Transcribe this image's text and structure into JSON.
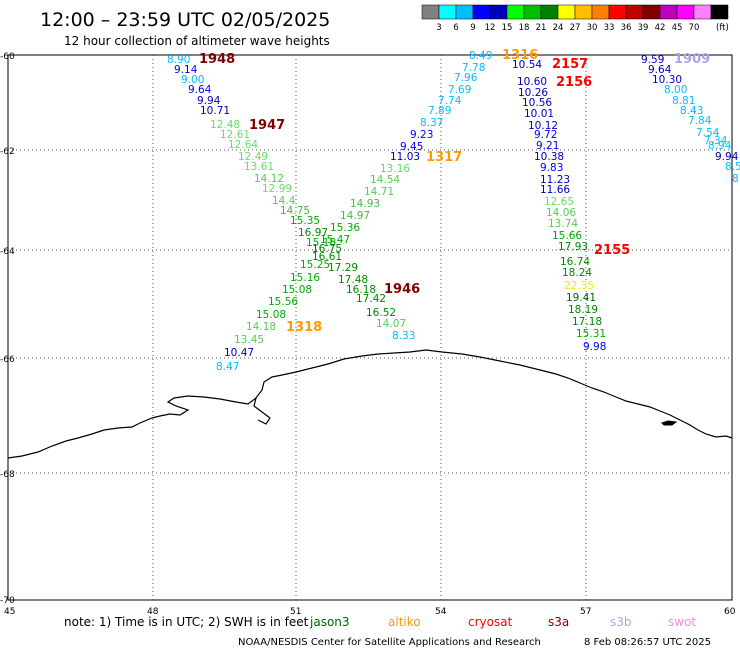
{
  "header": {
    "title": "12:00 – 23:59 UTC 02/05/2025",
    "subtitle": "12 hour collection of altimeter wave heights"
  },
  "colorbar": {
    "colors": [
      "#808080",
      "#00ffff",
      "#00bfff",
      "#0000ff",
      "#0000bf",
      "#00ff00",
      "#00bf00",
      "#008000",
      "#ffff00",
      "#ffbf00",
      "#ff8000",
      "#ff0000",
      "#bf0000",
      "#800000",
      "#bf00bf",
      "#ff00ff",
      "#ff80ff",
      "#000000"
    ],
    "labels": [
      "3",
      "6",
      "9",
      "12",
      "15",
      "18",
      "21",
      "24",
      "27",
      "30",
      "33",
      "36",
      "39",
      "42",
      "45",
      "70"
    ],
    "unit": "(ft)"
  },
  "axes": {
    "lat_ticks": [
      "-60",
      "-62",
      "-64",
      "-66",
      "-68",
      "-70"
    ],
    "lon_ticks": [
      "45",
      "48",
      "51",
      "54",
      "57",
      "60"
    ]
  },
  "wave_labels": [
    {
      "v": "8.90",
      "c": "#00bfff"
    },
    {
      "v": "9.14",
      "c": "#0000ff"
    },
    {
      "v": "9.00",
      "c": "#00bfff"
    },
    {
      "v": "9.64",
      "c": "#0000ff"
    },
    {
      "v": "9.94",
      "c": "#0000bf"
    },
    {
      "v": "10.71",
      "c": "#0000bf"
    },
    {
      "v": "12.48",
      "c": "#66dd66"
    },
    {
      "v": "12.61",
      "c": "#66dd66"
    },
    {
      "v": "12.64",
      "c": "#66dd66"
    },
    {
      "v": "12.49",
      "c": "#66dd66"
    },
    {
      "v": "13.61",
      "c": "#66dd66"
    },
    {
      "v": "14.12",
      "c": "#55cc55"
    },
    {
      "v": "12.99",
      "c": "#66dd66"
    },
    {
      "v": "14.4",
      "c": "#55cc55"
    },
    {
      "v": "14.75",
      "c": "#44bb44"
    },
    {
      "v": "15.35",
      "c": "#00aa00"
    },
    {
      "v": "16.97",
      "c": "#008800"
    },
    {
      "v": "15.18",
      "c": "#00aa00"
    },
    {
      "v": "16.75",
      "c": "#008800"
    },
    {
      "v": "16.61",
      "c": "#008800"
    },
    {
      "v": "15.25",
      "c": "#00aa00"
    },
    {
      "v": "15.16",
      "c": "#00aa00"
    },
    {
      "v": "15.08",
      "c": "#00aa00"
    },
    {
      "v": "15.56",
      "c": "#00aa00"
    },
    {
      "v": "15.08",
      "c": "#00aa00"
    },
    {
      "v": "14.18",
      "c": "#55cc55"
    },
    {
      "v": "13.45",
      "c": "#55cc55"
    },
    {
      "v": "10.47",
      "c": "#0000bf"
    },
    {
      "v": "8.47",
      "c": "#00bfff"
    },
    {
      "v": "8.49",
      "c": "#00bfff"
    },
    {
      "v": "7.78",
      "c": "#00bfff"
    },
    {
      "v": "7.96",
      "c": "#00bfff"
    },
    {
      "v": "7.69",
      "c": "#00bfff"
    },
    {
      "v": "7.74",
      "c": "#00bfff"
    },
    {
      "v": "7.89",
      "c": "#00bfff"
    },
    {
      "v": "8.37",
      "c": "#00bfff"
    },
    {
      "v": "9.23",
      "c": "#0000ff"
    },
    {
      "v": "9.45",
      "c": "#0000ff"
    },
    {
      "v": "11.03",
      "c": "#0000bf"
    },
    {
      "v": "13.16",
      "c": "#66dd66"
    },
    {
      "v": "14.54",
      "c": "#55cc55"
    },
    {
      "v": "14.71",
      "c": "#55cc55"
    },
    {
      "v": "14.93",
      "c": "#44bb44"
    },
    {
      "v": "14.97",
      "c": "#44bb44"
    },
    {
      "v": "15.36",
      "c": "#00aa00"
    },
    {
      "v": "15.47",
      "c": "#00aa00"
    },
    {
      "v": "17.29",
      "c": "#008800"
    },
    {
      "v": "17.48",
      "c": "#008800"
    },
    {
      "v": "16.18",
      "c": "#008800"
    },
    {
      "v": "17.42",
      "c": "#008800"
    },
    {
      "v": "16.52",
      "c": "#008800"
    },
    {
      "v": "14.07",
      "c": "#55cc55"
    },
    {
      "v": "8.33",
      "c": "#00bfff"
    },
    {
      "v": "10.54",
      "c": "#0000bf"
    },
    {
      "v": "10.60",
      "c": "#0000bf"
    },
    {
      "v": "10.26",
      "c": "#0000bf"
    },
    {
      "v": "10.56",
      "c": "#0000bf"
    },
    {
      "v": "10.01",
      "c": "#0000bf"
    },
    {
      "v": "10.12",
      "c": "#0000bf"
    },
    {
      "v": "9.72",
      "c": "#0000ff"
    },
    {
      "v": "9.21",
      "c": "#0000ff"
    },
    {
      "v": "10.38",
      "c": "#0000bf"
    },
    {
      "v": "9.83",
      "c": "#0000ff"
    },
    {
      "v": "11.23",
      "c": "#0000bf"
    },
    {
      "v": "11.66",
      "c": "#0000bf"
    },
    {
      "v": "12.65",
      "c": "#66dd66"
    },
    {
      "v": "14.06",
      "c": "#55cc55"
    },
    {
      "v": "13.74",
      "c": "#55cc55"
    },
    {
      "v": "15.66",
      "c": "#00aa00"
    },
    {
      "v": "17.93",
      "c": "#008800"
    },
    {
      "v": "16.74",
      "c": "#008800"
    },
    {
      "v": "18.24",
      "c": "#008800"
    },
    {
      "v": "22.35",
      "c": "#eeee00"
    },
    {
      "v": "19.41",
      "c": "#006600"
    },
    {
      "v": "18.19",
      "c": "#008800"
    },
    {
      "v": "17.18",
      "c": "#008800"
    },
    {
      "v": "15.31",
      "c": "#00aa00"
    },
    {
      "v": "9.98",
      "c": "#0000ff"
    },
    {
      "v": "9.59",
      "c": "#0000bf"
    },
    {
      "v": "9.64",
      "c": "#0000bf"
    },
    {
      "v": "10.30",
      "c": "#0000bf"
    },
    {
      "v": "8.00",
      "c": "#00bfff"
    },
    {
      "v": "8.81",
      "c": "#00bfff"
    },
    {
      "v": "8.43",
      "c": "#00bfff"
    },
    {
      "v": "7.84",
      "c": "#00bfff"
    },
    {
      "v": "7.54",
      "c": "#00bfff"
    },
    {
      "v": "7.34",
      "c": "#00bfff"
    },
    {
      "v": "8.94",
      "c": "#00bfff"
    },
    {
      "v": "9.94",
      "c": "#0000bf"
    },
    {
      "v": "8.5",
      "c": "#00bfff"
    },
    {
      "v": "8",
      "c": "#00bfff"
    }
  ],
  "pass_labels": [
    {
      "t": "1948",
      "c": "#800000"
    },
    {
      "t": "1947",
      "c": "#800000"
    },
    {
      "t": "1946",
      "c": "#800000"
    },
    {
      "t": "1318",
      "c": "#ff9900"
    },
    {
      "t": "1316",
      "c": "#ff9900"
    },
    {
      "t": "1317",
      "c": "#ff9900"
    },
    {
      "t": "2157",
      "c": "#ff0000"
    },
    {
      "t": "2156",
      "c": "#ff0000"
    },
    {
      "t": "2155",
      "c": "#ff0000"
    },
    {
      "t": "1909",
      "c": "#b0a0e8"
    }
  ],
  "legend": {
    "note": "note:  1) Time is in UTC;  2) SWH is in feet",
    "satellites": [
      {
        "name": "jason3",
        "color": "#006400"
      },
      {
        "name": "altiko",
        "color": "#ff9900"
      },
      {
        "name": "cryosat",
        "color": "#ff0000"
      },
      {
        "name": "s3a",
        "color": "#800000"
      },
      {
        "name": "s3b",
        "color": "#b0a0e8"
      },
      {
        "name": "swot",
        "color": "#ff88dd"
      }
    ]
  },
  "footer": {
    "credit": "NOAA/NESDIS Center for Satellite Applications and Research",
    "timestamp": "8 Feb 08:26:57 UTC 2025"
  }
}
